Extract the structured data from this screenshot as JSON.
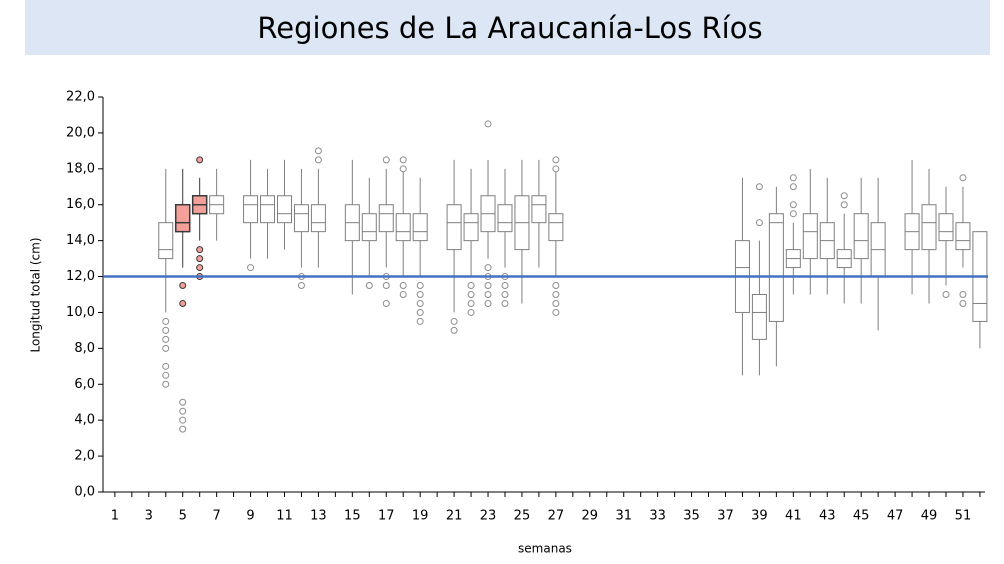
{
  "chart_data": {
    "type": "box",
    "title": "Regiones de La Araucanía-Los Ríos",
    "x_label": "semanas",
    "y_label": "Longitud total (cm)",
    "xlim": [
      0.3,
      52.3
    ],
    "xticks": [
      1,
      3,
      5,
      7,
      9,
      11,
      13,
      15,
      17,
      19,
      21,
      23,
      25,
      27,
      29,
      31,
      33,
      35,
      37,
      39,
      41,
      43,
      45,
      47,
      49,
      51
    ],
    "xminor_ticks": [
      2,
      4,
      6,
      8,
      10,
      12,
      14,
      16,
      18,
      20,
      22,
      24,
      26,
      28,
      30,
      32,
      34,
      36,
      38,
      40,
      42,
      44,
      46,
      48,
      50,
      52
    ],
    "ylim": [
      0,
      22
    ],
    "yticks": [
      {
        "value": 0,
        "label": "0,0"
      },
      {
        "value": 2,
        "label": "2,0"
      },
      {
        "value": 4,
        "label": "4,0"
      },
      {
        "value": 6,
        "label": "6,0"
      },
      {
        "value": 8,
        "label": "8,0"
      },
      {
        "value": 10,
        "label": "10,0"
      },
      {
        "value": 12,
        "label": "12,0"
      },
      {
        "value": 14,
        "label": "14,0"
      },
      {
        "value": 16,
        "label": "16,0"
      },
      {
        "value": 18,
        "label": "18,0"
      },
      {
        "value": 20,
        "label": "20,0"
      },
      {
        "value": 22,
        "label": "22,0"
      }
    ],
    "box_fill": "#ffffff",
    "box_stroke": "#7f7f7f",
    "reference_line": {
      "value": 12,
      "color": "#4472c4"
    },
    "boxes": [
      {
        "x": 4,
        "low": 10,
        "q1": 13,
        "median": 13.5,
        "q3": 15,
        "high": 18,
        "outliers": [
          9.5,
          9,
          8.5,
          8,
          7,
          6.5,
          6
        ]
      },
      {
        "x": 5,
        "low": 12.5,
        "q1": 14.5,
        "median": 15,
        "q3": 16,
        "high": 18,
        "outliers": [
          11.5,
          10.5,
          5,
          4.5,
          4,
          3.5
        ],
        "fill": "#f4a09a",
        "stroke": "#3a3a3a"
      },
      {
        "x": 6,
        "low": 14,
        "q1": 15.5,
        "median": 16,
        "q3": 16.5,
        "high": 17.5,
        "outliers": [
          18.5,
          13.5,
          13,
          12.5,
          12
        ],
        "fill": "#f4a09a",
        "stroke": "#3a3a3a"
      },
      {
        "x": 7,
        "low": 14,
        "q1": 15.5,
        "median": 16,
        "q3": 16.5,
        "high": 18,
        "outliers": []
      },
      {
        "x": 9,
        "low": 13,
        "q1": 15,
        "median": 16,
        "q3": 16.5,
        "high": 18.5,
        "outliers": [
          12.5
        ]
      },
      {
        "x": 10,
        "low": 13,
        "q1": 15,
        "median": 16,
        "q3": 16.5,
        "high": 18,
        "outliers": []
      },
      {
        "x": 11,
        "low": 13.5,
        "q1": 15,
        "median": 15.5,
        "q3": 16.5,
        "high": 18.5,
        "outliers": []
      },
      {
        "x": 12,
        "low": 12.5,
        "q1": 14.5,
        "median": 15.5,
        "q3": 16,
        "high": 18,
        "outliers": [
          12,
          11.5
        ]
      },
      {
        "x": 13,
        "low": 12.5,
        "q1": 14.5,
        "median": 15,
        "q3": 16,
        "high": 18,
        "outliers": [
          19,
          18.5
        ]
      },
      {
        "x": 15,
        "low": 11,
        "q1": 14,
        "median": 15,
        "q3": 16,
        "high": 18.5,
        "outliers": []
      },
      {
        "x": 16,
        "low": 12,
        "q1": 14,
        "median": 14.5,
        "q3": 15.5,
        "high": 17.5,
        "outliers": [
          11.5
        ]
      },
      {
        "x": 17,
        "low": 12.5,
        "q1": 14.5,
        "median": 15.5,
        "q3": 16,
        "high": 18,
        "outliers": [
          18.5,
          12,
          11.5,
          10.5
        ]
      },
      {
        "x": 18,
        "low": 12,
        "q1": 14,
        "median": 14.5,
        "q3": 15.5,
        "high": 18,
        "outliers": [
          18.5,
          18,
          11.5,
          11
        ]
      },
      {
        "x": 19,
        "low": 12,
        "q1": 14,
        "median": 14.5,
        "q3": 15.5,
        "high": 17.5,
        "outliers": [
          11.5,
          11,
          10.5,
          10,
          9.5
        ]
      },
      {
        "x": 21,
        "low": 10,
        "q1": 13.5,
        "median": 15,
        "q3": 16,
        "high": 18.5,
        "outliers": [
          9.5,
          9
        ]
      },
      {
        "x": 22,
        "low": 12,
        "q1": 14,
        "median": 15,
        "q3": 15.5,
        "high": 18,
        "outliers": [
          11.5,
          11,
          10.5,
          10
        ]
      },
      {
        "x": 23,
        "low": 13,
        "q1": 14.5,
        "median": 15.5,
        "q3": 16.5,
        "high": 18.5,
        "outliers": [
          20.5,
          12.5,
          12,
          11.5,
          11,
          10.5
        ]
      },
      {
        "x": 24,
        "low": 12.5,
        "q1": 14.5,
        "median": 15,
        "q3": 16,
        "high": 18,
        "outliers": [
          12,
          11.5,
          11,
          10.5
        ]
      },
      {
        "x": 25,
        "low": 10.5,
        "q1": 13.5,
        "median": 15,
        "q3": 16.5,
        "high": 18.5,
        "outliers": []
      },
      {
        "x": 26,
        "low": 12.5,
        "q1": 15,
        "median": 16,
        "q3": 16.5,
        "high": 18.5,
        "outliers": []
      },
      {
        "x": 27,
        "low": 12,
        "q1": 14,
        "median": 15,
        "q3": 15.5,
        "high": 18,
        "outliers": [
          18.5,
          18,
          11.5,
          11,
          10.5,
          10
        ]
      },
      {
        "x": 38,
        "low": 6.5,
        "q1": 10,
        "median": 12.5,
        "q3": 14,
        "high": 17.5,
        "outliers": []
      },
      {
        "x": 39,
        "low": 6.5,
        "q1": 8.5,
        "median": 10,
        "q3": 11,
        "high": 14,
        "outliers": [
          17,
          15
        ]
      },
      {
        "x": 40,
        "low": 7,
        "q1": 9.5,
        "median": 15,
        "q3": 15.5,
        "high": 17,
        "outliers": []
      },
      {
        "x": 41,
        "low": 11,
        "q1": 12.5,
        "median": 13,
        "q3": 13.5,
        "high": 15,
        "outliers": [
          17.5,
          17,
          16,
          15.5
        ]
      },
      {
        "x": 42,
        "low": 11,
        "q1": 13,
        "median": 14.5,
        "q3": 15.5,
        "high": 18,
        "outliers": []
      },
      {
        "x": 43,
        "low": 11,
        "q1": 13,
        "median": 14,
        "q3": 15,
        "high": 17.5,
        "outliers": []
      },
      {
        "x": 44,
        "low": 10.5,
        "q1": 12.5,
        "median": 13,
        "q3": 13.5,
        "high": 15.5,
        "outliers": [
          16.5,
          16
        ]
      },
      {
        "x": 45,
        "low": 10.5,
        "q1": 13,
        "median": 14,
        "q3": 15.5,
        "high": 17.5,
        "outliers": []
      },
      {
        "x": 46,
        "low": 9,
        "q1": 12,
        "median": 13.5,
        "q3": 15,
        "high": 17.5,
        "outliers": []
      },
      {
        "x": 48,
        "low": 11,
        "q1": 13.5,
        "median": 14.5,
        "q3": 15.5,
        "high": 18.5,
        "outliers": []
      },
      {
        "x": 49,
        "low": 10.5,
        "q1": 13.5,
        "median": 15,
        "q3": 16,
        "high": 18,
        "outliers": []
      },
      {
        "x": 50,
        "low": 11.5,
        "q1": 14,
        "median": 14.5,
        "q3": 15.5,
        "high": 17,
        "outliers": [
          11
        ]
      },
      {
        "x": 51,
        "low": 12.5,
        "q1": 13.5,
        "median": 14,
        "q3": 15,
        "high": 17,
        "outliers": [
          17.5,
          11,
          10.5
        ]
      },
      {
        "x": 52,
        "low": 8,
        "q1": 9.5,
        "median": 10.5,
        "q3": 14.5,
        "high": 14.5,
        "outliers": []
      }
    ]
  }
}
